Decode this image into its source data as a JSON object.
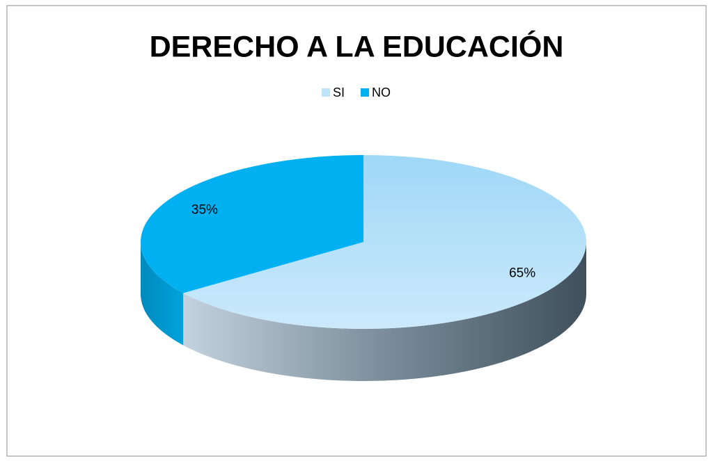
{
  "chart_data": {
    "type": "pie",
    "title": "DERECHO A LA EDUCACIÓN",
    "categories": [
      "SI",
      "NO"
    ],
    "values": [
      65,
      35
    ],
    "value_labels": [
      "65%",
      "35%"
    ],
    "colors": [
      "#bfe4f9",
      "#00b0f0"
    ],
    "legend": "top"
  }
}
